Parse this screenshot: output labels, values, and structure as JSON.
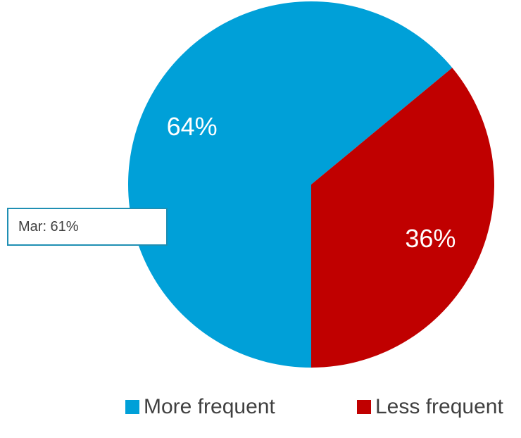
{
  "chart_data": {
    "type": "pie",
    "categories": [
      "More frequent",
      "Less frequent"
    ],
    "values": [
      64,
      36
    ],
    "data_labels": [
      "64%",
      "36%"
    ],
    "colors": [
      "#00a0d8",
      "#c00000"
    ],
    "start_angle_from_top_clockwise_deg": 180,
    "annotation": "Mar: 61%",
    "legend_position": "bottom",
    "title": ""
  }
}
